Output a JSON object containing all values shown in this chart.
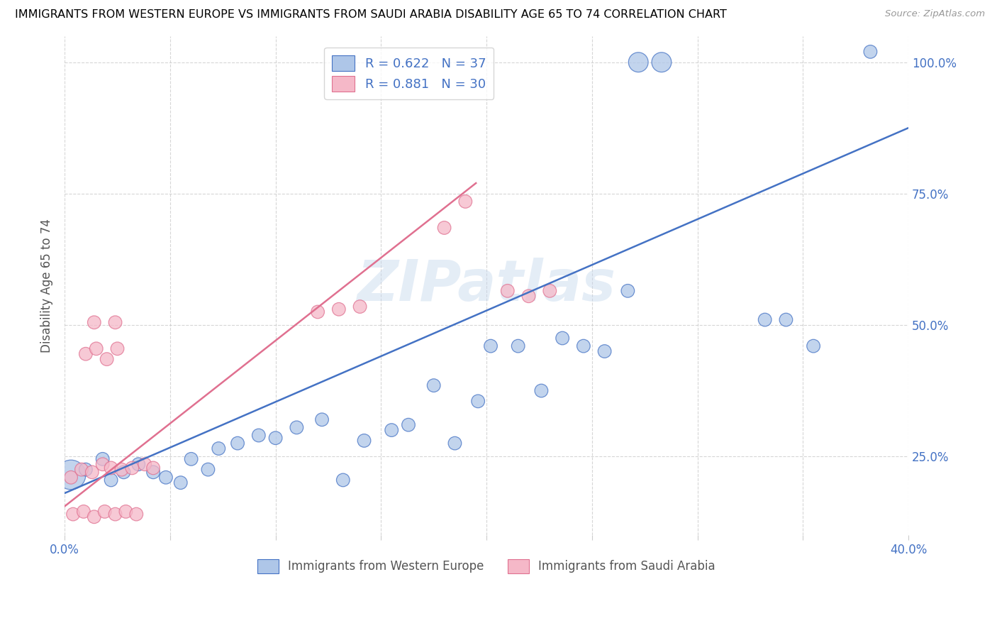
{
  "title": "IMMIGRANTS FROM WESTERN EUROPE VS IMMIGRANTS FROM SAUDI ARABIA DISABILITY AGE 65 TO 74 CORRELATION CHART",
  "source": "Source: ZipAtlas.com",
  "ylabel": "Disability Age 65 to 74",
  "xlim": [
    0.0,
    0.4
  ],
  "ylim": [
    0.1,
    1.05
  ],
  "x_ticks": [
    0.0,
    0.05,
    0.1,
    0.15,
    0.2,
    0.25,
    0.3,
    0.35,
    0.4
  ],
  "x_tick_labels": [
    "0.0%",
    "",
    "",
    "",
    "",
    "",
    "",
    "",
    "40.0%"
  ],
  "y_ticks": [
    0.25,
    0.5,
    0.75,
    1.0
  ],
  "y_right_labels": [
    "25.0%",
    "50.0%",
    "75.0%",
    "100.0%"
  ],
  "blue_color": "#aec6e8",
  "pink_color": "#f5b8c8",
  "line_blue": "#4472c4",
  "line_pink": "#e07090",
  "watermark": "ZIPatlas",
  "blue_scatter_x": [
    0.272,
    0.283,
    0.003,
    0.01,
    0.018,
    0.022,
    0.028,
    0.035,
    0.042,
    0.048,
    0.055,
    0.06,
    0.068,
    0.073,
    0.082,
    0.092,
    0.1,
    0.11,
    0.122,
    0.132,
    0.142,
    0.155,
    0.163,
    0.175,
    0.185,
    0.196,
    0.202,
    0.215,
    0.226,
    0.236,
    0.246,
    0.256,
    0.267,
    0.332,
    0.342,
    0.355,
    0.382
  ],
  "blue_scatter_y": [
    1.0,
    1.0,
    0.215,
    0.225,
    0.245,
    0.205,
    0.22,
    0.235,
    0.22,
    0.21,
    0.2,
    0.245,
    0.225,
    0.265,
    0.275,
    0.29,
    0.285,
    0.305,
    0.32,
    0.205,
    0.28,
    0.3,
    0.31,
    0.385,
    0.275,
    0.355,
    0.46,
    0.46,
    0.375,
    0.475,
    0.46,
    0.45,
    0.565,
    0.51,
    0.51,
    0.46,
    1.02
  ],
  "blue_scatter_sizes": [
    400,
    400,
    900,
    180,
    180,
    180,
    180,
    180,
    180,
    180,
    180,
    180,
    180,
    180,
    180,
    180,
    180,
    180,
    180,
    180,
    180,
    180,
    180,
    180,
    180,
    180,
    180,
    180,
    180,
    180,
    180,
    180,
    180,
    180,
    180,
    180,
    180
  ],
  "pink_scatter_x": [
    0.003,
    0.008,
    0.013,
    0.018,
    0.022,
    0.027,
    0.032,
    0.038,
    0.042,
    0.01,
    0.015,
    0.02,
    0.025,
    0.18,
    0.19,
    0.004,
    0.009,
    0.014,
    0.019,
    0.024,
    0.029,
    0.034,
    0.12,
    0.13,
    0.14,
    0.21,
    0.22,
    0.23,
    0.014,
    0.024
  ],
  "pink_scatter_y": [
    0.21,
    0.225,
    0.22,
    0.235,
    0.228,
    0.225,
    0.228,
    0.235,
    0.228,
    0.445,
    0.455,
    0.435,
    0.455,
    0.685,
    0.735,
    0.14,
    0.145,
    0.135,
    0.145,
    0.14,
    0.145,
    0.14,
    0.525,
    0.53,
    0.535,
    0.565,
    0.555,
    0.565,
    0.505,
    0.505
  ],
  "pink_scatter_sizes": [
    180,
    180,
    180,
    180,
    180,
    180,
    180,
    180,
    180,
    180,
    180,
    180,
    180,
    180,
    180,
    180,
    180,
    180,
    180,
    180,
    180,
    180,
    180,
    180,
    180,
    180,
    180,
    180,
    180,
    180
  ],
  "blue_line_x": [
    0.0,
    0.4
  ],
  "blue_line_y": [
    0.18,
    0.875
  ],
  "pink_line_x": [
    0.0,
    0.195
  ],
  "pink_line_y": [
    0.155,
    0.77
  ],
  "legend_items": [
    {
      "label": "R = 0.622   N = 37",
      "color": "#aec6e8",
      "edge": "#4472c4"
    },
    {
      "label": "R = 0.881   N = 30",
      "color": "#f5b8c8",
      "edge": "#e07090"
    }
  ],
  "bottom_legend": [
    {
      "label": "Immigrants from Western Europe",
      "color": "#aec6e8",
      "edge": "#4472c4"
    },
    {
      "label": "Immigrants from Saudi Arabia",
      "color": "#f5b8c8",
      "edge": "#e07090"
    }
  ]
}
